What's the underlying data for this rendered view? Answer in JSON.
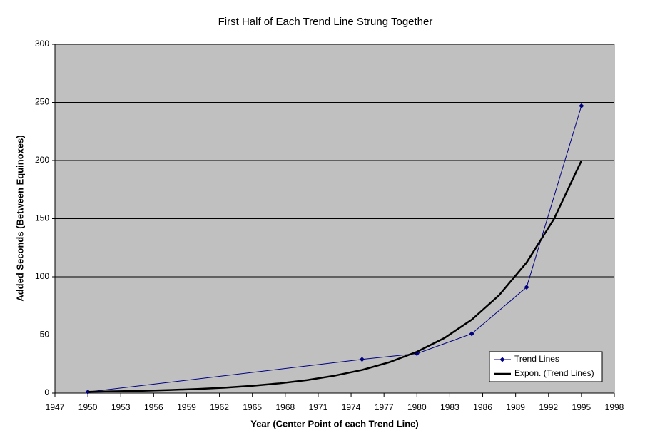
{
  "chart_data": {
    "type": "line",
    "title": "First Half of Each Trend Line Strung Together",
    "xlabel": "Year (Center Point of each Trend Line)",
    "ylabel": "Added Seconds (Between Equinoxes)",
    "xlim": [
      1947,
      1998
    ],
    "xticks": [
      1947,
      1950,
      1953,
      1956,
      1959,
      1962,
      1965,
      1968,
      1971,
      1974,
      1977,
      1980,
      1983,
      1986,
      1989,
      1992,
      1995,
      1998
    ],
    "ylim": [
      0,
      300
    ],
    "yticks": [
      0,
      50,
      100,
      150,
      200,
      250,
      300
    ],
    "grid": true,
    "legend": "lower right",
    "series": [
      {
        "name": "Trend Lines",
        "color": "#000080",
        "marker": "diamond",
        "x": [
          1950,
          1975,
          1980,
          1985,
          1990,
          1995
        ],
        "values": [
          1,
          29,
          34,
          51,
          91,
          247
        ]
      },
      {
        "name": "Expon. (Trend Lines)",
        "color": "#000000",
        "x": [
          1950,
          1952.5,
          1955,
          1957.5,
          1960,
          1962.5,
          1965,
          1967.5,
          1970,
          1972.5,
          1975,
          1977.5,
          1980,
          1982.5,
          1985,
          1987.5,
          1990,
          1992.5,
          1995
        ],
        "values": [
          1.1,
          1.5,
          2.0,
          2.7,
          3.5,
          4.7,
          6.3,
          8.4,
          11.2,
          15.0,
          19.9,
          26.6,
          35.5,
          47.3,
          63.1,
          84.2,
          112.3,
          149.8,
          199.8
        ]
      }
    ]
  }
}
